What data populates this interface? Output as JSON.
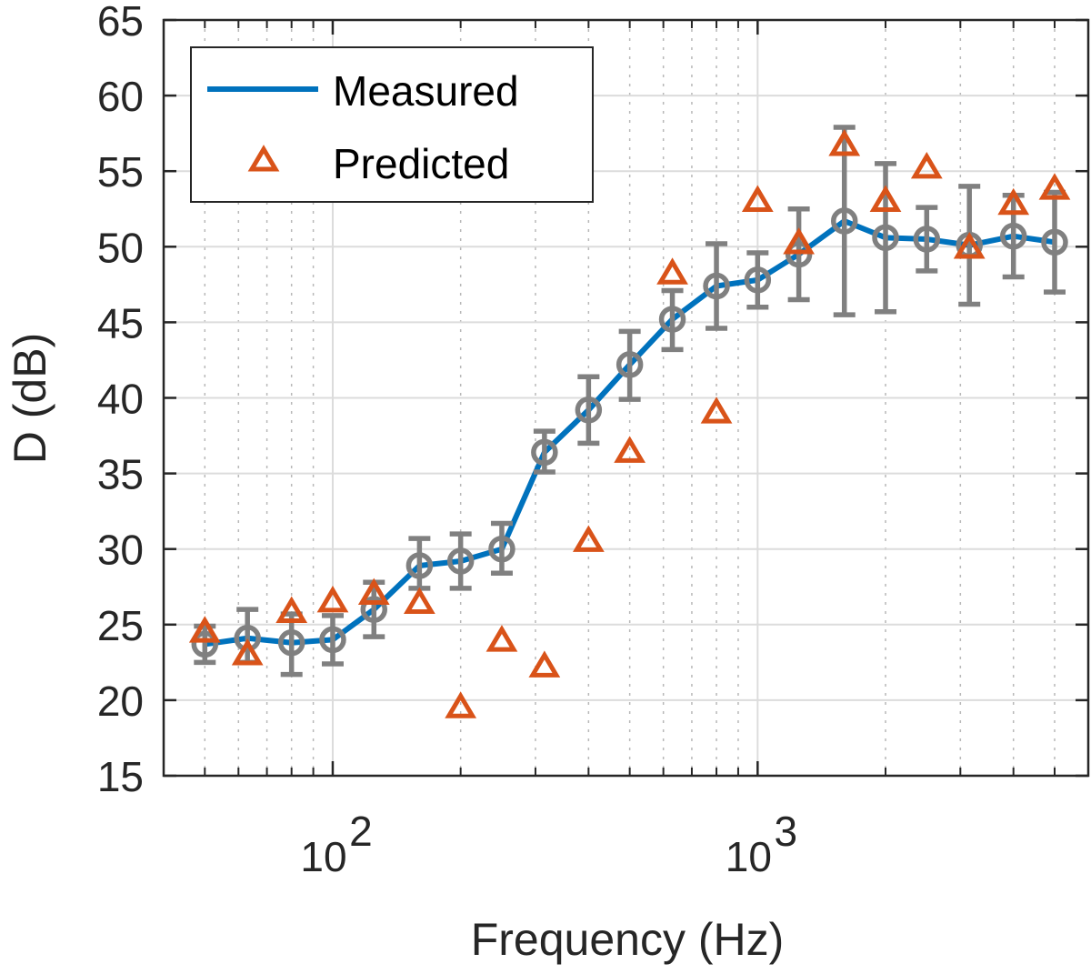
{
  "chart_data": {
    "type": "line",
    "xscale": "log",
    "xlabel": "Frequency (Hz)",
    "ylabel": "D (dB)",
    "xlim": [
      40,
      6000
    ],
    "ylim": [
      15,
      65
    ],
    "grid": true,
    "minor_grid_x": true,
    "legend_position": "top-left",
    "y_ticks": [
      15,
      20,
      25,
      30,
      35,
      40,
      45,
      50,
      55,
      60,
      65
    ],
    "x_ticks": [
      {
        "base": "10",
        "exp": "2",
        "value": 100
      },
      {
        "base": "10",
        "exp": "3",
        "value": 1000
      }
    ],
    "x": [
      50,
      63,
      80,
      100,
      125,
      160,
      200,
      250,
      315,
      400,
      500,
      630,
      800,
      1000,
      1250,
      1600,
      2000,
      2500,
      3150,
      4000,
      5000
    ],
    "series": [
      {
        "name": "Measured",
        "color": "#0072BD",
        "marker_color": "#808080",
        "values": [
          23.7,
          24.1,
          23.8,
          24.0,
          26.0,
          28.9,
          29.2,
          30.0,
          36.4,
          39.2,
          42.2,
          45.2,
          47.4,
          47.8,
          49.5,
          51.7,
          50.6,
          50.5,
          50.1,
          50.7,
          50.3
        ],
        "error_low": [
          1.2,
          1.6,
          2.1,
          1.6,
          1.8,
          1.5,
          1.8,
          1.6,
          1.3,
          2.2,
          2.3,
          2.0,
          2.8,
          1.8,
          3.0,
          6.2,
          4.9,
          2.1,
          3.9,
          2.7,
          3.3
        ],
        "error_high": [
          1.2,
          1.9,
          1.9,
          1.6,
          1.8,
          1.8,
          1.8,
          1.7,
          1.4,
          2.2,
          2.2,
          1.9,
          2.8,
          1.8,
          3.0,
          6.2,
          4.9,
          2.1,
          3.9,
          2.7,
          3.3
        ]
      },
      {
        "name": "Predicted",
        "color": "#D95319",
        "values": [
          24.5,
          23.0,
          25.8,
          26.5,
          27.0,
          26.4,
          19.5,
          23.9,
          22.2,
          30.5,
          36.4,
          48.2,
          39.0,
          53.0,
          50.2,
          56.7,
          53.0,
          55.2,
          49.9,
          52.8,
          53.8
        ]
      }
    ]
  }
}
